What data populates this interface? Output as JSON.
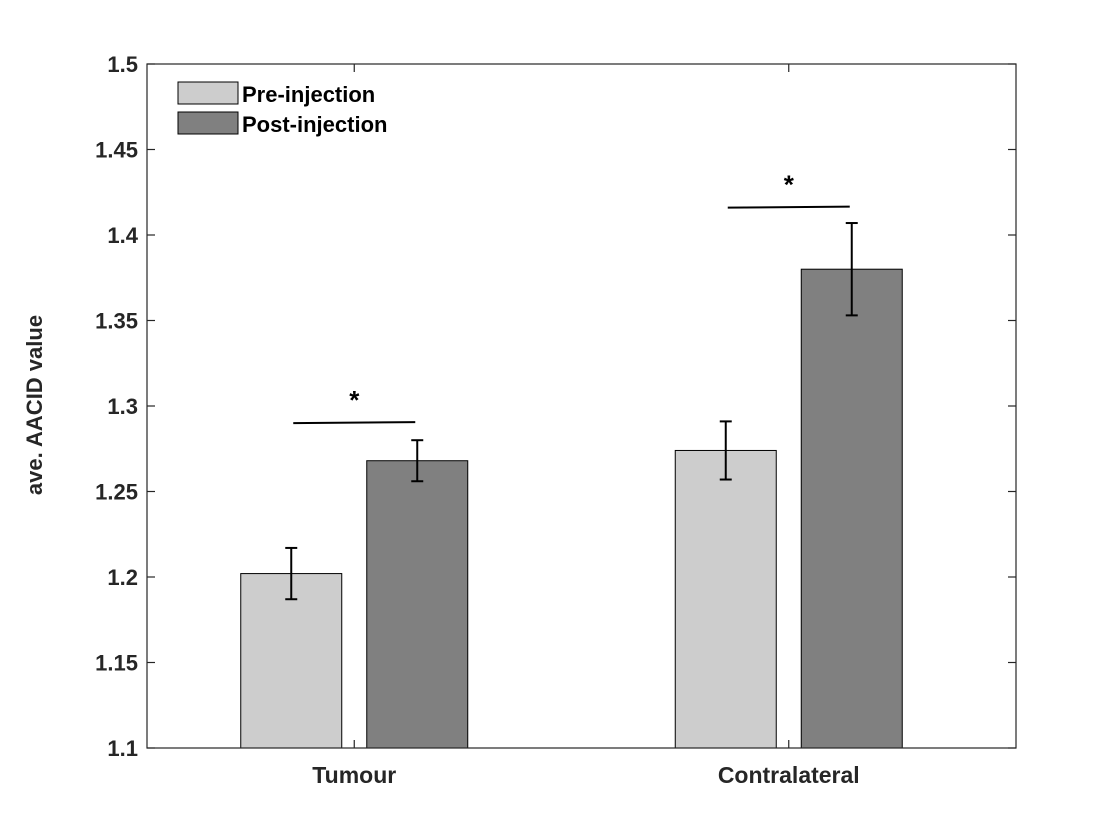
{
  "chart_data": {
    "type": "bar",
    "title": "",
    "xlabel": "",
    "ylabel": "ave. AACID value",
    "ylim": [
      1.1,
      1.5
    ],
    "yticks": [
      "1.1",
      "1.15",
      "1.2",
      "1.25",
      "1.3",
      "1.35",
      "1.4",
      "1.45",
      "1.5"
    ],
    "categories": [
      "Tumour",
      "Contralateral"
    ],
    "series": [
      {
        "name": "Pre-injection",
        "color": "#cdcdcd",
        "values": [
          1.202,
          1.274
        ],
        "errors": [
          0.015,
          0.017
        ]
      },
      {
        "name": "Post-injection",
        "color": "#808080",
        "values": [
          1.268,
          1.38
        ],
        "errors": [
          0.012,
          0.027
        ]
      }
    ],
    "legend_position": "top-left",
    "significance": [
      {
        "category": "Tumour",
        "label": "*",
        "level": 1.29
      },
      {
        "category": "Contralateral",
        "label": "*",
        "level": 1.416
      }
    ],
    "grid": false
  }
}
